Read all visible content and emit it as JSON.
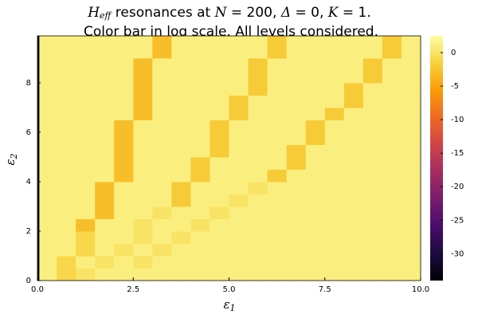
{
  "chart_data": {
    "type": "heatmap",
    "title": [
      "H",
      "eff",
      " resonances at ",
      "N",
      " = 200, ",
      "Δ",
      " = 0, ",
      "K",
      " = 1."
    ],
    "subtitle": "Color bar in log scale. All levels considered.",
    "xlabel": [
      "ε",
      "1"
    ],
    "ylabel": [
      "ε",
      "2"
    ],
    "x_edges": [
      0,
      0.05,
      0.5,
      1,
      1.5,
      2,
      2.5,
      3,
      3.5,
      4,
      4.5,
      5,
      5.5,
      6,
      6.5,
      7,
      7.5,
      8,
      8.5,
      9,
      9.5,
      10
    ],
    "y_edges": [
      0,
      0.5,
      1,
      1.5,
      2,
      2.5,
      3,
      3.5,
      4,
      4.5,
      5,
      5.5,
      6,
      6.5,
      7,
      7.5,
      8,
      8.5,
      9,
      9.5,
      9.9
    ],
    "z": [
      [
        -33,
        1,
        -1,
        0,
        1,
        1,
        1,
        1,
        1,
        1,
        1,
        1,
        1,
        1,
        1,
        1,
        1,
        1,
        1,
        1,
        1
      ],
      [
        -33,
        1,
        -1,
        1,
        0,
        1,
        0,
        1,
        1,
        1,
        1,
        1,
        1,
        1,
        1,
        1,
        1,
        1,
        1,
        1,
        1
      ],
      [
        -33,
        1,
        1,
        -1,
        1,
        0,
        1,
        0,
        1,
        1,
        1,
        1,
        1,
        1,
        1,
        1,
        1,
        1,
        1,
        1,
        1
      ],
      [
        -33,
        1,
        1,
        -1,
        1,
        1,
        0,
        1,
        0,
        1,
        1,
        1,
        1,
        1,
        1,
        1,
        1,
        1,
        1,
        1,
        1
      ],
      [
        -33,
        1,
        1,
        -3,
        1,
        1,
        0,
        1,
        1,
        0,
        1,
        1,
        1,
        1,
        1,
        1,
        1,
        1,
        1,
        1,
        1
      ],
      [
        -33,
        1,
        1,
        1,
        -3,
        1,
        1,
        0,
        1,
        1,
        0,
        1,
        1,
        1,
        1,
        1,
        1,
        1,
        1,
        1,
        1
      ],
      [
        -33,
        1,
        1,
        1,
        -3,
        1,
        1,
        1,
        -2,
        1,
        1,
        0,
        1,
        1,
        1,
        1,
        1,
        1,
        1,
        1,
        1
      ],
      [
        -33,
        1,
        1,
        1,
        -3,
        1,
        1,
        1,
        -2,
        1,
        1,
        1,
        0,
        1,
        1,
        1,
        1,
        1,
        1,
        1,
        1
      ],
      [
        -33,
        1,
        1,
        1,
        1,
        -3,
        1,
        1,
        1,
        -2,
        1,
        1,
        1,
        -2,
        1,
        1,
        1,
        1,
        1,
        1,
        1
      ],
      [
        -33,
        1,
        1,
        1,
        1,
        -3,
        1,
        1,
        1,
        -2,
        1,
        1,
        1,
        1,
        -2,
        1,
        1,
        1,
        1,
        1,
        1
      ],
      [
        -33,
        1,
        1,
        1,
        1,
        -3,
        1,
        1,
        1,
        1,
        -2,
        1,
        1,
        1,
        -2,
        1,
        1,
        1,
        1,
        1,
        1
      ],
      [
        -33,
        1,
        1,
        1,
        1,
        -3,
        1,
        1,
        1,
        1,
        -2,
        1,
        1,
        1,
        1,
        -2,
        1,
        1,
        1,
        1,
        1
      ],
      [
        -33,
        1,
        1,
        1,
        1,
        -3,
        1,
        1,
        1,
        1,
        -2,
        1,
        1,
        1,
        1,
        -2,
        1,
        1,
        1,
        1,
        1
      ],
      [
        -33,
        1,
        1,
        1,
        1,
        1,
        -3,
        1,
        1,
        1,
        1,
        -2,
        1,
        1,
        1,
        1,
        -2,
        1,
        1,
        1,
        1
      ],
      [
        -33,
        1,
        1,
        1,
        1,
        1,
        -3,
        1,
        1,
        1,
        1,
        -2,
        1,
        1,
        1,
        1,
        1,
        -2,
        1,
        1,
        1
      ],
      [
        -33,
        1,
        1,
        1,
        1,
        1,
        -3,
        1,
        1,
        1,
        1,
        1,
        -2,
        1,
        1,
        1,
        1,
        -2,
        1,
        1,
        1
      ],
      [
        -33,
        1,
        1,
        1,
        1,
        1,
        -3,
        1,
        1,
        1,
        1,
        1,
        -2,
        1,
        1,
        1,
        1,
        1,
        -2,
        1,
        1
      ],
      [
        -33,
        1,
        1,
        1,
        1,
        1,
        -3,
        1,
        1,
        1,
        1,
        1,
        -2,
        1,
        1,
        1,
        1,
        1,
        -2,
        1,
        1
      ],
      [
        -33,
        1,
        1,
        1,
        1,
        1,
        1,
        -3,
        1,
        1,
        1,
        1,
        1,
        -2,
        1,
        1,
        1,
        1,
        1,
        -2,
        1
      ],
      [
        -33,
        1,
        1,
        1,
        1,
        1,
        1,
        -3,
        1,
        1,
        1,
        1,
        1,
        -2,
        1,
        1,
        1,
        1,
        1,
        -2,
        1
      ]
    ],
    "xlim": [
      0,
      10
    ],
    "ylim": [
      0,
      9.9
    ],
    "xticks": [
      {
        "value": 0,
        "label": "0.0"
      },
      2.5,
      {
        "value": 5,
        "label": "5.0"
      },
      7.5,
      {
        "value": 10,
        "label": "10.0"
      }
    ],
    "yticks": [
      0,
      2,
      4,
      6,
      8
    ],
    "clim": [
      -34,
      2.5
    ],
    "cticks": [
      -30,
      -25,
      -20,
      -15,
      -10,
      -5,
      0
    ],
    "colormap": [
      "#000004",
      "#1b0c41",
      "#4a0c6b",
      "#781c6d",
      "#a52c60",
      "#cf4446",
      "#ed6925",
      "#fb9b06",
      "#f7d13d",
      "#fcffa4"
    ]
  }
}
